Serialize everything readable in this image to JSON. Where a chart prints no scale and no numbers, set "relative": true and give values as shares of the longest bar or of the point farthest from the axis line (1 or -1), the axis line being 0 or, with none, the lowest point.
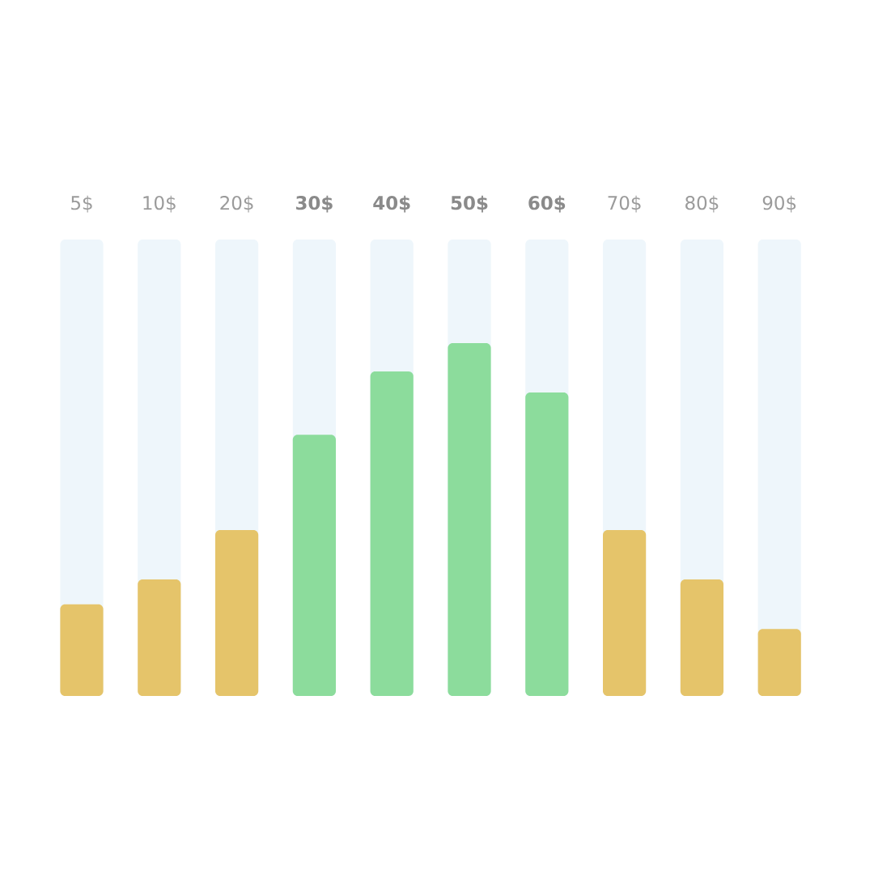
{
  "chart_data": {
    "type": "bar",
    "relative": true,
    "categories": [
      "5$",
      "10$",
      "20$",
      "30$",
      "40$",
      "50$",
      "60$",
      "70$",
      "80$",
      "90$"
    ],
    "values": [
      0.26,
      0.33,
      0.47,
      0.74,
      0.92,
      1,
      0.86,
      0.47,
      0.33,
      0.19
    ],
    "colors": [
      "#e5c46a",
      "#e5c46a",
      "#e5c46a",
      "#8cdc9c",
      "#8cdc9c",
      "#8cdc9c",
      "#8cdc9c",
      "#e5c46a",
      "#e5c46a",
      "#e5c46a"
    ]
  }
}
